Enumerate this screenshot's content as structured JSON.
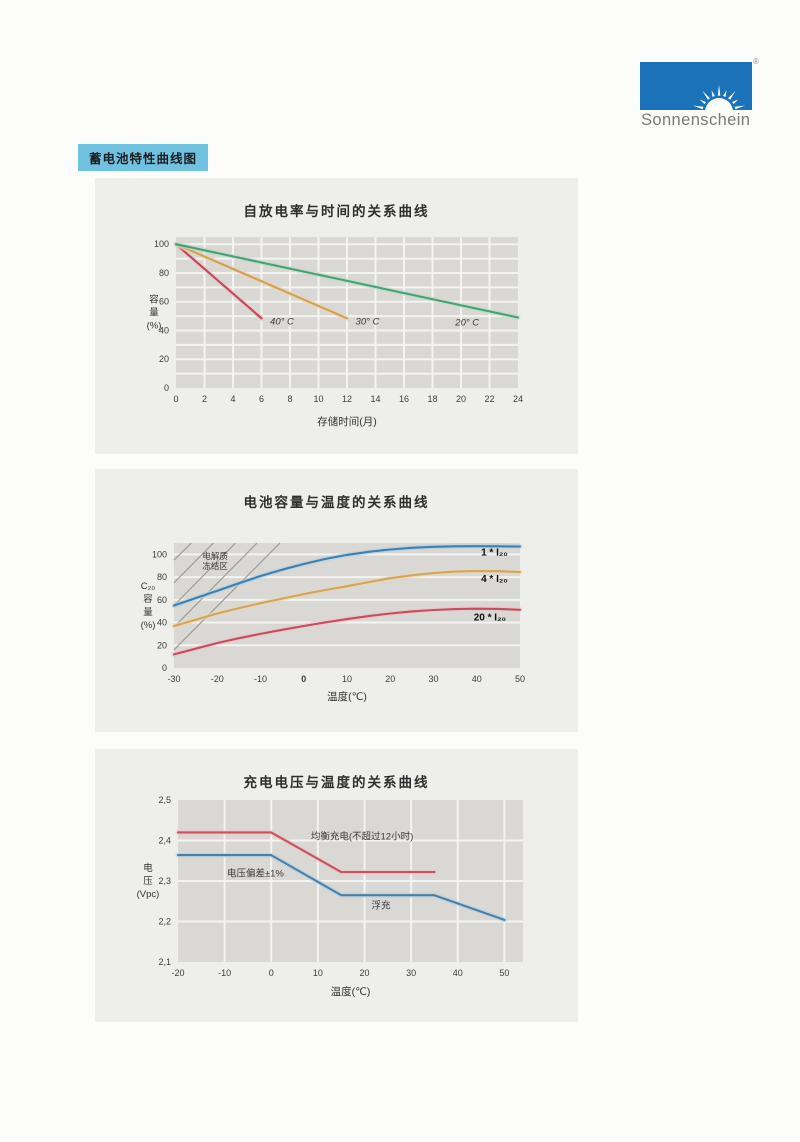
{
  "logo": {
    "brand": "Sonnenschein",
    "registered": "®",
    "box_color": "#1a72b8",
    "sun_icon": "sun-rising-icon"
  },
  "header": {
    "title": "蓄电池特性曲线图",
    "bg": "#6fc3e1"
  },
  "panels": {
    "bg": "#eeeeeb",
    "plot_bg": "#d9d8d5",
    "grid_color": "#f3f3f1",
    "tick_color": "#3b3b3b",
    "label_color": "#333333",
    "annotation_color": "#3a3a3a",
    "series_label_color": "#111111"
  },
  "chart_data": [
    {
      "id": "self-discharge-vs-time",
      "type": "line",
      "title": "自放电率与时间的关系曲线",
      "xlabel": "存储时间(月)",
      "ylabel_lines": [
        "容",
        "量",
        "(%)"
      ],
      "xlim": [
        0,
        24
      ],
      "ylim": [
        0,
        105
      ],
      "xticks": [
        0,
        2,
        4,
        6,
        8,
        10,
        12,
        14,
        16,
        18,
        20,
        22,
        24
      ],
      "yticks": [
        0,
        20,
        40,
        60,
        80,
        100
      ],
      "grid_x": [
        2,
        4,
        6,
        8,
        10,
        12,
        14,
        16,
        18,
        20,
        22
      ],
      "grid_y": [
        10,
        20,
        30,
        40,
        50,
        60,
        70,
        80,
        90,
        100
      ],
      "plot": {
        "l": 81,
        "t": 59,
        "r": 423,
        "b": 210
      },
      "ylabel_x": 59,
      "xlabel_dy": 37,
      "series": [
        {
          "name": "40C",
          "color": "#bf4a57",
          "halo": "#eac4c9",
          "points": [
            [
              0,
              100
            ],
            [
              6,
              48.5
            ]
          ],
          "label": "40° C",
          "label_pos": [
            6.6,
            44
          ],
          "label_style": "italic"
        },
        {
          "name": "30C",
          "color": "#d0a05a",
          "halo": "#ead6ae",
          "points": [
            [
              0,
              100
            ],
            [
              12,
              48.5
            ]
          ],
          "label": "30° C",
          "label_pos": [
            12.6,
            44
          ],
          "label_style": "italic"
        },
        {
          "name": "20C",
          "color": "#49a071",
          "halo": "#bedccb",
          "points": [
            [
              0,
              100
            ],
            [
              24,
              49
            ]
          ],
          "label": "20° C",
          "label_pos": [
            19.6,
            43.5
          ],
          "label_style": "italic"
        }
      ]
    },
    {
      "id": "capacity-vs-temperature",
      "type": "line",
      "title": "电池容量与温度的关系曲线",
      "xlabel": "温度(℃)",
      "ylabel_lines": [
        "C₂₀",
        "容",
        "量",
        "(%)"
      ],
      "xlim": [
        -30,
        50
      ],
      "ylim": [
        0,
        110
      ],
      "xticks": [
        -30,
        -20,
        -10,
        0,
        10,
        20,
        30,
        40,
        50
      ],
      "bold_xticks": [
        0
      ],
      "yticks": [
        0,
        20,
        40,
        60,
        80,
        100
      ],
      "grid_x": [],
      "grid_y": [
        20,
        40,
        60,
        80,
        100
      ],
      "plot": {
        "l": 79,
        "t": 74,
        "r": 425,
        "b": 199
      },
      "ylabel_x": 53,
      "xlabel_dy": 32,
      "hatch": {
        "color": "#9b9b98",
        "lines": [
          [
            -30,
            16,
            -5.5,
            110
          ],
          [
            -30,
            36,
            -10.8,
            110
          ],
          [
            -30,
            55,
            -15.8,
            110
          ],
          [
            -30,
            75,
            -20.9,
            110
          ],
          [
            -30,
            95,
            -26,
            110
          ]
        ],
        "label_lines": [
          "电解质",
          "冻结区"
        ],
        "label_pos": [
          -20.5,
          96
        ]
      },
      "series": [
        {
          "name": "1xI20",
          "color": "#3f7fae",
          "halo": "#b9cfdf",
          "points": [
            [
              -30,
              55
            ],
            [
              -25,
              61.5
            ],
            [
              -20,
              68
            ],
            [
              -15,
              74.5
            ],
            [
              -10,
              81
            ],
            [
              -5,
              86.5
            ],
            [
              0,
              91.5
            ],
            [
              5,
              96
            ],
            [
              10,
              99.5
            ],
            [
              15,
              102.3
            ],
            [
              20,
              104.3
            ],
            [
              25,
              105.8
            ],
            [
              30,
              106.7
            ],
            [
              35,
              107.1
            ],
            [
              40,
              107.2
            ],
            [
              45,
              107.1
            ],
            [
              50,
              106.9
            ]
          ],
          "label": "1 * I₂₀",
          "label_pos": [
            41,
            99
          ],
          "label_style": "bold"
        },
        {
          "name": "4xI20",
          "color": "#d2a55e",
          "halo": "#ead7b0",
          "points": [
            [
              -30,
              37
            ],
            [
              -25,
              42.5
            ],
            [
              -20,
              48
            ],
            [
              -15,
              52.7
            ],
            [
              -10,
              57
            ],
            [
              -5,
              61.1
            ],
            [
              0,
              65
            ],
            [
              5,
              68.6
            ],
            [
              10,
              72
            ],
            [
              15,
              75.6
            ],
            [
              20,
              79
            ],
            [
              25,
              81.6
            ],
            [
              30,
              83.6
            ],
            [
              35,
              84.8
            ],
            [
              40,
              85.4
            ],
            [
              45,
              85.2
            ],
            [
              50,
              84.5
            ]
          ],
          "label": "4 * I₂₀",
          "label_pos": [
            41,
            75.5
          ],
          "label_style": "bold"
        },
        {
          "name": "20xI20",
          "color": "#c44f5c",
          "halo": "#edc5ca",
          "points": [
            [
              -30,
              12
            ],
            [
              -25,
              17
            ],
            [
              -20,
              22
            ],
            [
              -15,
              26.2
            ],
            [
              -10,
              30
            ],
            [
              -5,
              33.6
            ],
            [
              0,
              37
            ],
            [
              5,
              40.1
            ],
            [
              10,
              43
            ],
            [
              15,
              45.7
            ],
            [
              20,
              48
            ],
            [
              25,
              49.8
            ],
            [
              30,
              51
            ],
            [
              35,
              51.8
            ],
            [
              40,
              52.2
            ],
            [
              45,
              52
            ],
            [
              50,
              51.2
            ]
          ],
          "label": "20 * I₂₀",
          "label_pos": [
            39.3,
            42
          ],
          "label_style": "bold"
        }
      ]
    },
    {
      "id": "charge-voltage-vs-temperature",
      "type": "line",
      "title": "充电电压与温度的关系曲线",
      "xlabel": "温度(℃)",
      "ylabel_lines": [
        "电",
        "压",
        "(Vpc)"
      ],
      "xlim": [
        -20,
        54
      ],
      "ylim": [
        2.1,
        2.5
      ],
      "xticks": [
        -20,
        -10,
        0,
        10,
        20,
        30,
        40,
        50
      ],
      "yticks": [
        2.1,
        2.2,
        2.3,
        2.4,
        2.5
      ],
      "ytick_labels": [
        "2,1",
        "2,2",
        "2,3",
        "2,4",
        "2,5"
      ],
      "grid_x": [
        -10,
        0,
        10,
        20,
        30,
        40,
        50
      ],
      "grid_y": [
        2.2,
        2.3,
        2.4
      ],
      "plot": {
        "l": 83,
        "t": 51,
        "r": 428,
        "b": 213
      },
      "ylabel_x": 53,
      "xlabel_dy": 33,
      "series": [
        {
          "name": "equalize-charge",
          "color": "#c4545e",
          "halo": "#edc6ca",
          "points": [
            [
              -20,
              2.42
            ],
            [
              0,
              2.42
            ],
            [
              15,
              2.322
            ],
            [
              35,
              2.322
            ]
          ]
        },
        {
          "name": "float-charge",
          "color": "#4a80a8",
          "halo": "#bccfdd",
          "points": [
            [
              -20,
              2.364
            ],
            [
              0,
              2.364
            ],
            [
              15,
              2.265
            ],
            [
              35,
              2.265
            ],
            [
              50,
              2.204
            ]
          ]
        }
      ],
      "annotations": [
        {
          "text": "均衡充电(不超过12小时)",
          "pos": [
            8.5,
            2.403
          ]
        },
        {
          "text": "电压偏差±1%",
          "pos": [
            -9.5,
            2.311
          ]
        },
        {
          "text": "浮充",
          "pos": [
            21.5,
            2.232
          ]
        }
      ]
    }
  ]
}
